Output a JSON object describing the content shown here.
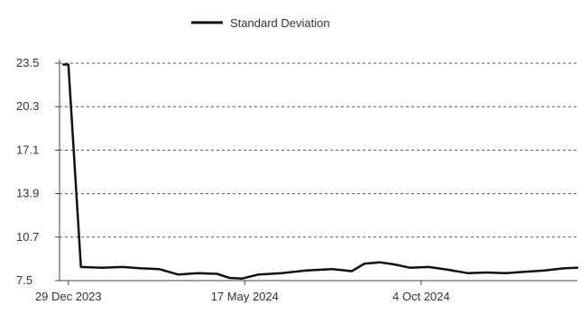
{
  "chart_data": {
    "type": "line",
    "title": "",
    "xlabel": "",
    "ylabel": "",
    "legend_position": "top-center",
    "grid": true,
    "series": [
      {
        "name": "Standard Deviation",
        "color": "#111111",
        "points": [
          {
            "x": "2023-12-25",
            "y": 23.4
          },
          {
            "x": "2023-12-29",
            "y": 23.4
          },
          {
            "x": "2024-01-08",
            "y": 8.5
          },
          {
            "x": "2024-01-25",
            "y": 8.45
          },
          {
            "x": "2024-02-10",
            "y": 8.5
          },
          {
            "x": "2024-02-25",
            "y": 8.4
          },
          {
            "x": "2024-03-10",
            "y": 8.35
          },
          {
            "x": "2024-03-25",
            "y": 7.95
          },
          {
            "x": "2024-04-10",
            "y": 8.05
          },
          {
            "x": "2024-04-25",
            "y": 8.0
          },
          {
            "x": "2024-05-05",
            "y": 7.7
          },
          {
            "x": "2024-05-15",
            "y": 7.65
          },
          {
            "x": "2024-05-28",
            "y": 7.95
          },
          {
            "x": "2024-06-15",
            "y": 8.05
          },
          {
            "x": "2024-07-05",
            "y": 8.25
          },
          {
            "x": "2024-07-25",
            "y": 8.35
          },
          {
            "x": "2024-08-10",
            "y": 8.2
          },
          {
            "x": "2024-08-20",
            "y": 8.75
          },
          {
            "x": "2024-09-01",
            "y": 8.85
          },
          {
            "x": "2024-09-12",
            "y": 8.7
          },
          {
            "x": "2024-09-25",
            "y": 8.45
          },
          {
            "x": "2024-10-10",
            "y": 8.5
          },
          {
            "x": "2024-10-25",
            "y": 8.3
          },
          {
            "x": "2024-11-10",
            "y": 8.05
          },
          {
            "x": "2024-11-25",
            "y": 8.1
          },
          {
            "x": "2024-12-10",
            "y": 8.05
          },
          {
            "x": "2024-12-25",
            "y": 8.15
          },
          {
            "x": "2025-01-10",
            "y": 8.25
          },
          {
            "x": "2025-01-25",
            "y": 8.4
          },
          {
            "x": "2025-02-05",
            "y": 8.45
          }
        ]
      }
    ],
    "xlim": [
      "2023-12-22",
      "2025-02-05"
    ],
    "ylim": [
      7.5,
      23.5
    ],
    "x_ticks": [
      {
        "x": "2023-12-29",
        "label": "29 Dec 2023"
      },
      {
        "x": "2024-05-17",
        "label": "17 May 2024"
      },
      {
        "x": "2024-10-04",
        "label": "4 Oct 2024"
      }
    ],
    "y_ticks": [
      {
        "y": 7.5,
        "label": "7.5"
      },
      {
        "y": 10.7,
        "label": "10.7"
      },
      {
        "y": 13.9,
        "label": "13.9"
      },
      {
        "y": 17.1,
        "label": "17.1"
      },
      {
        "y": 20.3,
        "label": "20.3"
      },
      {
        "y": 23.5,
        "label": "23.5"
      }
    ]
  }
}
